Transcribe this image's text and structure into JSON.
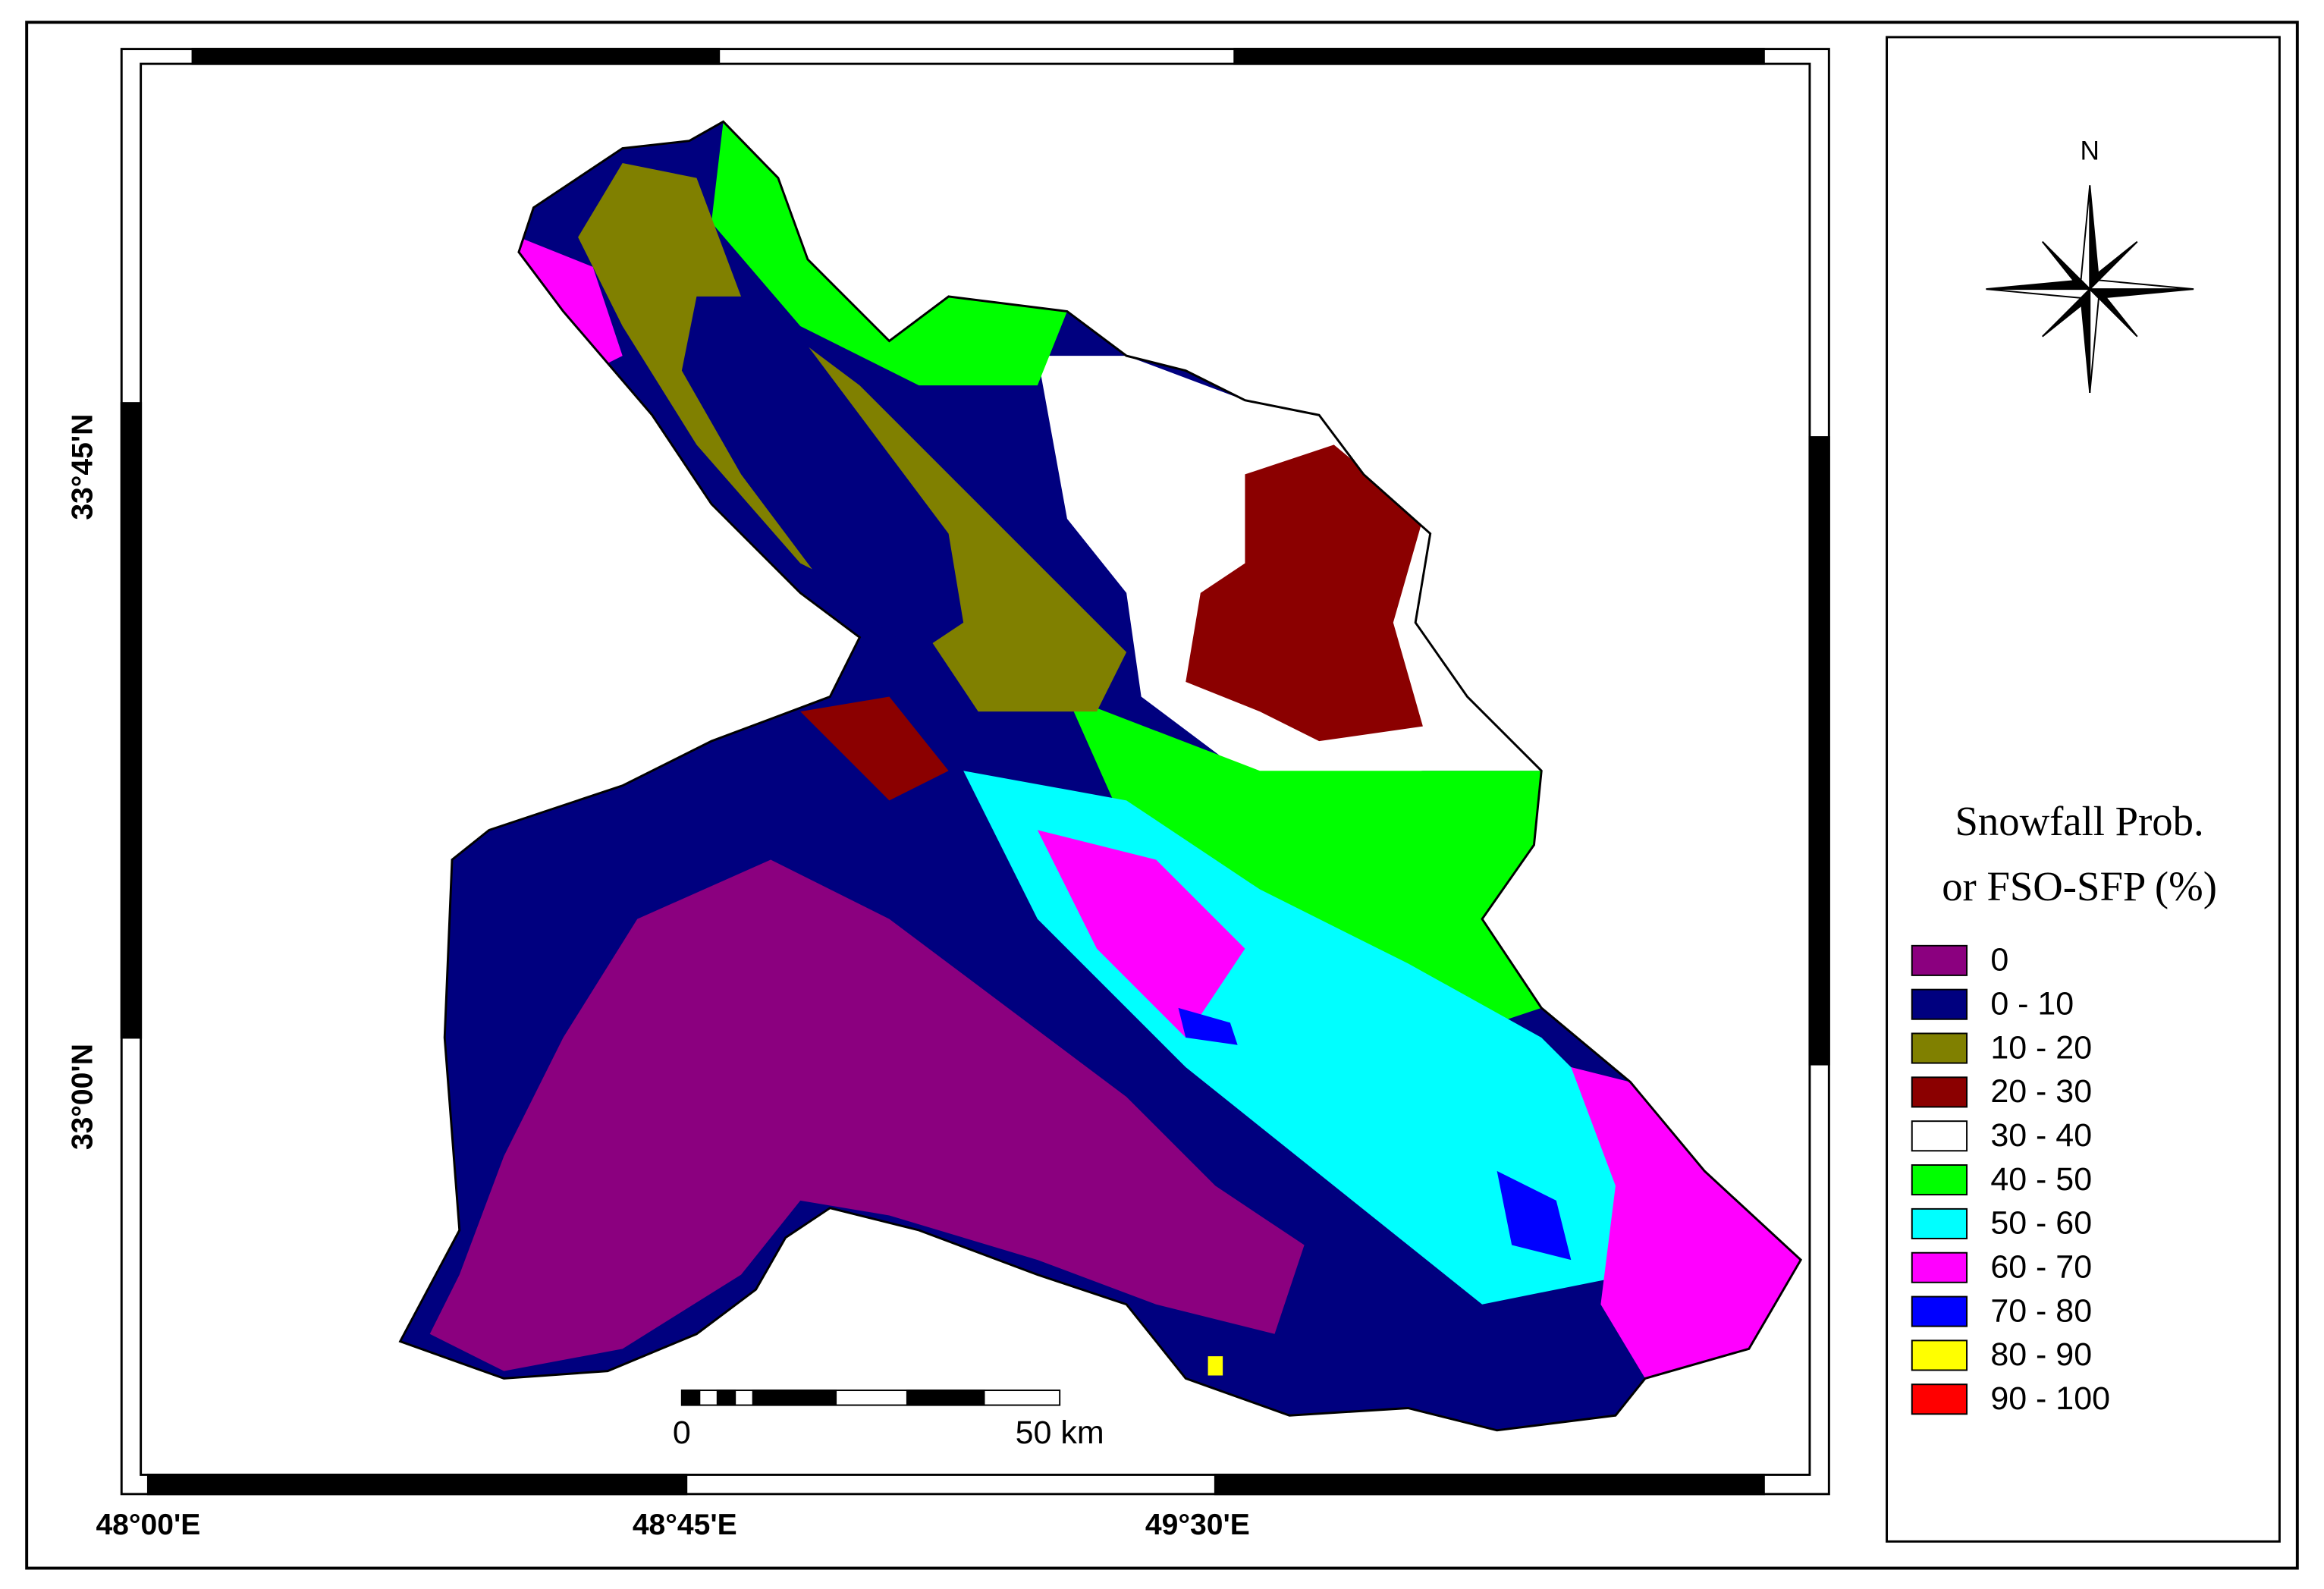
{
  "map": {
    "latitude_labels": [
      "33°45'N",
      "33°00'N"
    ],
    "longitude_labels": [
      "48°00'E",
      "48°45'E",
      "49°30'E"
    ],
    "north_label": "N",
    "scale_bar": {
      "labels": [
        "0",
        "50 km"
      ]
    },
    "legend": {
      "title": [
        "Snowfall Prob.",
        "or FSO-SFP (%)"
      ],
      "items": [
        {
          "label": "0",
          "color": "#8b007f"
        },
        {
          "label": "0 - 10",
          "color": "#00007f"
        },
        {
          "label": "10 - 20",
          "color": "#808000"
        },
        {
          "label": "20 - 30",
          "color": "#8b0000"
        },
        {
          "label": "30 - 40",
          "color": "#ffffff"
        },
        {
          "label": "40 - 50",
          "color": "#00ff00"
        },
        {
          "label": "50 - 60",
          "color": "#00ffff"
        },
        {
          "label": "60 - 70",
          "color": "#ff00ff"
        },
        {
          "label": "70 - 80",
          "color": "#0000ff"
        },
        {
          "label": "80 - 90",
          "color": "#ffff00"
        },
        {
          "label": "90 - 100",
          "color": "#ff0000"
        }
      ]
    }
  }
}
